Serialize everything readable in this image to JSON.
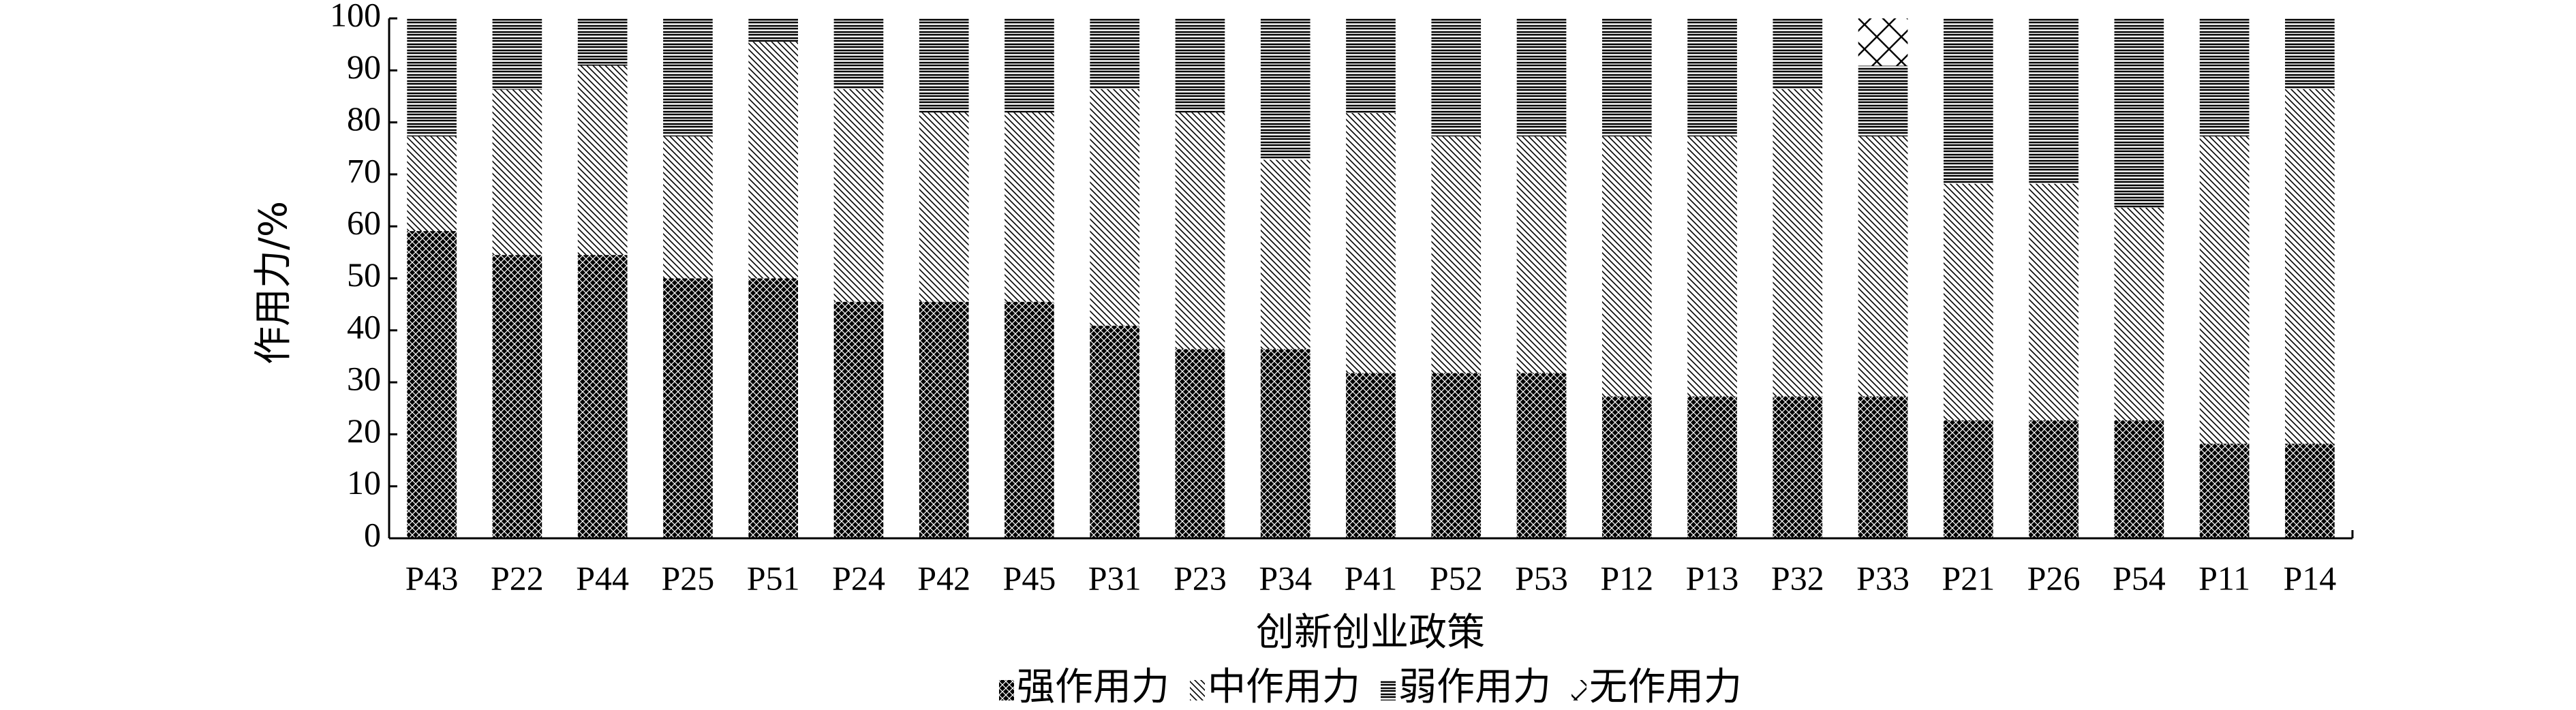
{
  "chart_data": {
    "type": "stacked_bar",
    "y_label": "作用力/%",
    "x_label": "创新创业政策",
    "categories": [
      "P43",
      "P22",
      "P44",
      "P25",
      "P51",
      "P24",
      "P42",
      "P45",
      "P31",
      "P23",
      "P34",
      "P41",
      "P52",
      "P53",
      "P12",
      "P13",
      "P32",
      "P33",
      "P21",
      "P26",
      "P54",
      "P11",
      "P14"
    ],
    "series": [
      {
        "name": "强作用力",
        "color": "#000000",
        "values": [
          59.1,
          54.5,
          54.5,
          50,
          50,
          45.5,
          45.5,
          45.5,
          40.9,
          36.4,
          36.4,
          31.8,
          31.8,
          31.8,
          27.3,
          27.3,
          27.3,
          27.3,
          22.7,
          22.7,
          22.7,
          18.2,
          18.2
        ]
      },
      {
        "name": "中作用力",
        "color": "#000000",
        "values": [
          18.2,
          31.8,
          36.4,
          27.3,
          45.5,
          40.9,
          36.4,
          36.4,
          45.5,
          45.5,
          36.4,
          50,
          45.5,
          45.5,
          50,
          50,
          59.1,
          50,
          45.5,
          45.5,
          40.9,
          59.1,
          68.2
        ]
      },
      {
        "name": "弱作用力",
        "color": "#000000",
        "values": [
          22.7,
          13.6,
          9.1,
          22.7,
          4.5,
          13.6,
          18.2,
          18.2,
          13.6,
          18.2,
          27.3,
          18.2,
          22.7,
          22.7,
          22.7,
          22.7,
          13.6,
          13.6,
          31.8,
          31.8,
          36.4,
          22.7,
          13.6
        ]
      },
      {
        "name": "无作用力",
        "color": "#000000",
        "values": [
          0,
          0,
          0,
          0,
          0,
          0,
          0,
          0,
          0,
          0,
          0,
          0,
          0,
          0,
          0,
          0,
          0,
          9.1,
          0,
          0,
          0,
          0,
          0
        ]
      }
    ],
    "ylim": [
      0,
      100
    ],
    "yticks": [
      0,
      10,
      20,
      30,
      40,
      50,
      60,
      70,
      80,
      90,
      100
    ],
    "legend": "bottom"
  }
}
